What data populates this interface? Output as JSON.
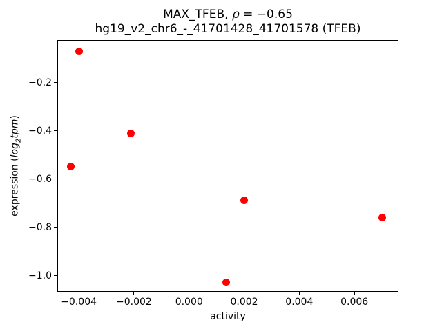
{
  "title": {
    "line1_prefix": "MAX_TFEB, ",
    "line1_rho": "ρ",
    "line1_eq": " = −0.65",
    "line2": "hg19_v2_chr6_-_41701428_41701578 (TFEB)"
  },
  "axes": {
    "xlabel": "activity",
    "ylabel_prefix": "expression (",
    "ylabel_log": "log",
    "ylabel_sub": "2",
    "ylabel_tpm": "tpm",
    "ylabel_suffix": ")"
  },
  "chart_data": {
    "type": "scatter",
    "title": "MAX_TFEB, ρ = −0.65\nhg19_v2_chr6_-_41701428_41701578 (TFEB)",
    "xlabel": "activity",
    "ylabel": "expression (log2 tpm)",
    "legend": null,
    "grid": false,
    "correlation_rho": -0.65,
    "marker_color": "#ff0000",
    "marker_diameter_px": 11,
    "xlim": [
      -0.00478,
      0.0076
    ],
    "ylim": [
      -1.066,
      -0.023
    ],
    "x_ticks": {
      "values": [
        -0.004,
        -0.002,
        0.0,
        0.002,
        0.004,
        0.006
      ],
      "labels": [
        "−0.004",
        "−0.002",
        "0.000",
        "0.002",
        "0.004",
        "0.006"
      ]
    },
    "y_ticks": {
      "values": [
        -0.2,
        -0.4,
        -0.6,
        -0.8,
        -1.0
      ],
      "labels": [
        "−0.2",
        "−0.4",
        "−0.6",
        "−0.8",
        "−1.0"
      ]
    },
    "points": [
      {
        "x": -0.004,
        "y": -0.069
      },
      {
        "x": -0.0043,
        "y": -0.546
      },
      {
        "x": -0.0021,
        "y": -0.409
      },
      {
        "x": 0.00135,
        "y": -1.028
      },
      {
        "x": 0.002,
        "y": -0.688
      },
      {
        "x": 0.007,
        "y": -0.76
      }
    ]
  }
}
